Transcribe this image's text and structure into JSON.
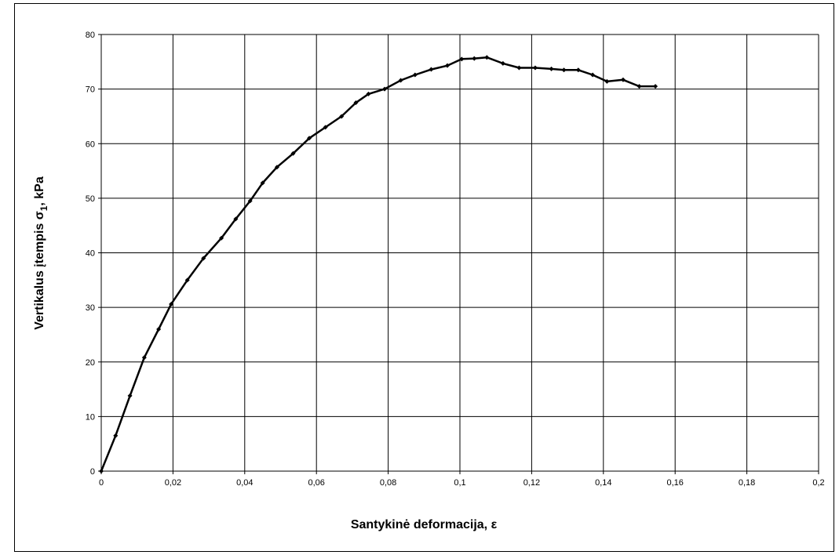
{
  "chart_data": {
    "type": "line",
    "title": "",
    "xlabel": "Santykinė deformacija, ε",
    "ylabel_main": "Vertikalus įtempis σ",
    "ylabel_sub": "1",
    "ylabel_tail": ", kPa",
    "xlim": [
      0,
      0.2
    ],
    "ylim": [
      0,
      80
    ],
    "grid": true,
    "legend": "none",
    "line_color": "#000000",
    "x_ticks": [
      "0",
      "0,02",
      "0,04",
      "0,06",
      "0,08",
      "0,1",
      "0,12",
      "0,14",
      "0,16",
      "0,18",
      "0,2"
    ],
    "y_ticks": [
      "0",
      "10",
      "20",
      "30",
      "40",
      "50",
      "60",
      "70",
      "80"
    ],
    "series": [
      {
        "x": [
          0,
          0.004,
          0.008,
          0.012,
          0.016,
          0.0195,
          0.024,
          0.0285,
          0.0335,
          0.0375,
          0.0415,
          0.045,
          0.049,
          0.0535,
          0.058,
          0.0625,
          0.067,
          0.071,
          0.0745,
          0.079,
          0.0835,
          0.0875,
          0.092,
          0.0965,
          0.1005,
          0.104,
          0.1075,
          0.112,
          0.1165,
          0.121,
          0.1255,
          0.129,
          0.133,
          0.137,
          0.141,
          0.1455,
          0.15,
          0.1545
        ],
        "values": [
          0,
          6.5,
          13.8,
          20.8,
          26,
          30.6,
          35,
          39,
          42.7,
          46.2,
          49.5,
          52.8,
          55.7,
          58.2,
          61,
          63,
          65,
          67.5,
          69.1,
          70,
          71.6,
          72.6,
          73.6,
          74.3,
          75.5,
          75.6,
          75.8,
          74.7,
          73.9,
          73.9,
          73.7,
          73.5,
          73.5,
          72.6,
          71.4,
          71.7,
          70.5,
          70.5
        ]
      }
    ]
  }
}
